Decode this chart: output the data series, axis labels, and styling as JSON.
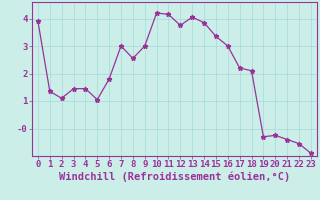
{
  "x": [
    0,
    1,
    2,
    3,
    4,
    5,
    6,
    7,
    8,
    9,
    10,
    11,
    12,
    13,
    14,
    15,
    16,
    17,
    18,
    19,
    20,
    21,
    22,
    23
  ],
  "y": [
    3.9,
    1.35,
    1.1,
    1.45,
    1.45,
    1.05,
    1.8,
    3.0,
    2.55,
    3.0,
    4.2,
    4.15,
    3.75,
    4.05,
    3.85,
    3.35,
    3.0,
    2.2,
    2.1,
    -0.3,
    -0.25,
    -0.4,
    -0.55,
    -0.9
  ],
  "line_color": "#993399",
  "marker": "*",
  "bg_color": "#cceee8",
  "grid_color": "#aadddd",
  "xlabel": "Windchill (Refroidissement éolien,°C)",
  "ylim": [
    -1.0,
    4.6
  ],
  "xlim": [
    -0.5,
    23.5
  ],
  "yticks": [
    0,
    1,
    2,
    3,
    4
  ],
  "ytick_labels": [
    "-0",
    "1",
    "2",
    "3",
    "4"
  ],
  "xticks": [
    0,
    1,
    2,
    3,
    4,
    5,
    6,
    7,
    8,
    9,
    10,
    11,
    12,
    13,
    14,
    15,
    16,
    17,
    18,
    19,
    20,
    21,
    22,
    23
  ],
  "line_color_hex": "#993399",
  "tick_color": "#993399",
  "axis_color": "#993399",
  "font_size": 6.5,
  "xlabel_font_size": 7.5,
  "linewidth": 0.9,
  "markersize": 3.5
}
